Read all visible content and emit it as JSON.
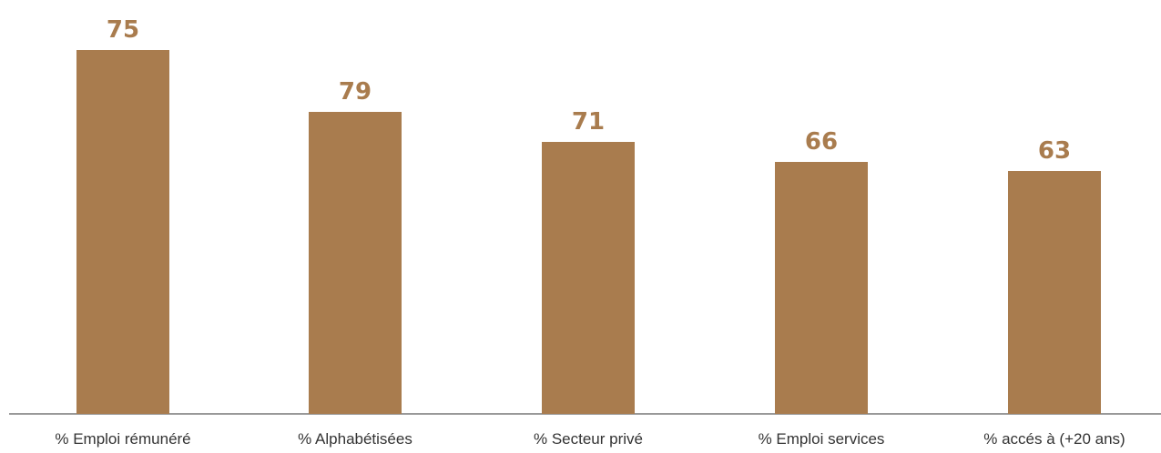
{
  "chart_data": {
    "type": "bar",
    "categories": [
      "% Emploi rémunéré",
      "% Alphabétisées",
      "% Secteur privé",
      "% Emploi services",
      "% accés à (+20 ans)"
    ],
    "values": [
      75,
      79,
      71,
      66,
      63
    ],
    "value_labels": [
      "75",
      "79",
      "71",
      "66",
      "63"
    ],
    "title": "",
    "xlabel": "",
    "ylabel": "",
    "grid": false,
    "legend": "none",
    "bar_color": "#a97c4e",
    "label_color": "#a97c4e",
    "axis_color": "#999999"
  }
}
